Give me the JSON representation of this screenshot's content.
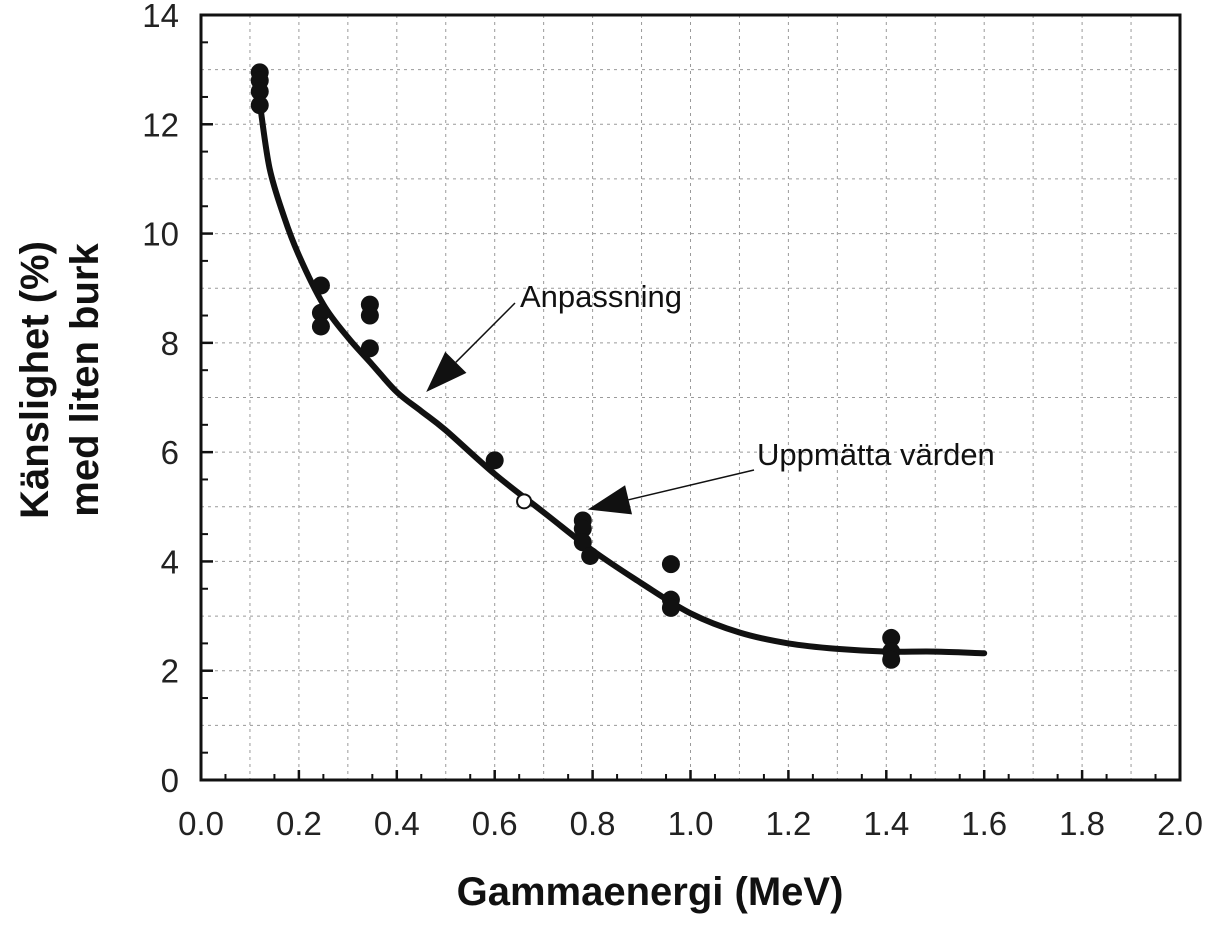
{
  "chart_data": {
    "type": "scatter",
    "xlabel": "Gammaenergi  (MeV)",
    "ylabel_line1": "Känslighet  (%)",
    "ylabel_line2": "med liten burk",
    "xlim": [
      0,
      2.0
    ],
    "ylim": [
      0,
      14
    ],
    "x_ticks": [
      "0.0",
      "0.2",
      "0.4",
      "0.6",
      "0.8",
      "1.0",
      "1.2",
      "1.4",
      "1.6",
      "1.8",
      "2.0"
    ],
    "y_ticks": [
      "0",
      "2",
      "4",
      "6",
      "8",
      "10",
      "12",
      "14"
    ],
    "grid": true,
    "series": [
      {
        "name": "Uppmätta värden",
        "kind": "points",
        "points": [
          [
            0.12,
            12.95
          ],
          [
            0.12,
            12.8
          ],
          [
            0.12,
            12.6
          ],
          [
            0.12,
            12.35
          ],
          [
            0.245,
            9.05
          ],
          [
            0.245,
            8.55
          ],
          [
            0.245,
            8.3
          ],
          [
            0.345,
            8.7
          ],
          [
            0.345,
            8.5
          ],
          [
            0.345,
            7.9
          ],
          [
            0.6,
            5.85
          ],
          [
            0.78,
            4.75
          ],
          [
            0.78,
            4.6
          ],
          [
            0.78,
            4.35
          ],
          [
            0.795,
            4.1
          ],
          [
            0.96,
            3.95
          ],
          [
            0.96,
            3.3
          ],
          [
            0.96,
            3.15
          ],
          [
            1.41,
            2.6
          ],
          [
            1.41,
            2.35
          ],
          [
            1.41,
            2.2
          ]
        ],
        "open_points": [
          [
            0.66,
            5.1
          ]
        ]
      },
      {
        "name": "Anpassning",
        "kind": "line",
        "points": [
          [
            0.12,
            12.4
          ],
          [
            0.14,
            11.2
          ],
          [
            0.17,
            10.3
          ],
          [
            0.2,
            9.6
          ],
          [
            0.25,
            8.7
          ],
          [
            0.3,
            8.1
          ],
          [
            0.35,
            7.6
          ],
          [
            0.4,
            7.1
          ],
          [
            0.45,
            6.75
          ],
          [
            0.5,
            6.4
          ],
          [
            0.6,
            5.6
          ],
          [
            0.7,
            4.9
          ],
          [
            0.8,
            4.2
          ],
          [
            0.9,
            3.6
          ],
          [
            1.0,
            3.05
          ],
          [
            1.1,
            2.7
          ],
          [
            1.2,
            2.5
          ],
          [
            1.3,
            2.4
          ],
          [
            1.4,
            2.35
          ],
          [
            1.5,
            2.35
          ],
          [
            1.6,
            2.32
          ]
        ]
      }
    ],
    "annotations": [
      {
        "text": "Anpassning",
        "arrow_to": [
          0.46,
          7.1
        ]
      },
      {
        "text": "Uppmätta värden",
        "arrow_to": [
          0.79,
          4.95
        ]
      }
    ],
    "colors": {
      "ink": "#111111",
      "grid": "#9a9a9a"
    }
  }
}
